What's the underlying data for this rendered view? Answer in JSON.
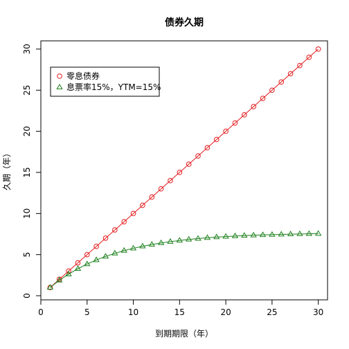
{
  "chart_data": {
    "type": "line",
    "title": "债券久期",
    "xlabel": "到期期限（年）",
    "ylabel": "久期（年）",
    "xlim": [
      0,
      31
    ],
    "ylim": [
      -0.5,
      31
    ],
    "xticks": [
      0,
      5,
      10,
      15,
      20,
      25,
      30
    ],
    "yticks": [
      0,
      5,
      10,
      15,
      20,
      25,
      30
    ],
    "grid": false,
    "legend_position": "top-left",
    "x": [
      1,
      2,
      3,
      4,
      5,
      6,
      7,
      8,
      9,
      10,
      11,
      12,
      13,
      14,
      15,
      16,
      17,
      18,
      19,
      20,
      21,
      22,
      23,
      24,
      25,
      26,
      27,
      28,
      29,
      30
    ],
    "series": [
      {
        "name": "零息债券",
        "color": "#e31a1c",
        "marker": "circle",
        "values": [
          1,
          2,
          3,
          4,
          5,
          6,
          7,
          8,
          9,
          10,
          11,
          12,
          13,
          14,
          15,
          16,
          17,
          18,
          19,
          20,
          21,
          22,
          23,
          24,
          25,
          26,
          27,
          28,
          29,
          30
        ]
      },
      {
        "name": "息票率15%，YTM=15%",
        "color": "#1a7f1a",
        "marker": "triangle",
        "values": [
          1.0,
          1.87,
          2.62,
          3.28,
          3.85,
          4.35,
          4.78,
          5.16,
          5.49,
          5.77,
          6.02,
          6.23,
          6.42,
          6.58,
          6.72,
          6.85,
          6.95,
          7.05,
          7.13,
          7.2,
          7.26,
          7.31,
          7.36,
          7.4,
          7.43,
          7.46,
          7.49,
          7.51,
          7.53,
          7.55
        ]
      }
    ]
  }
}
